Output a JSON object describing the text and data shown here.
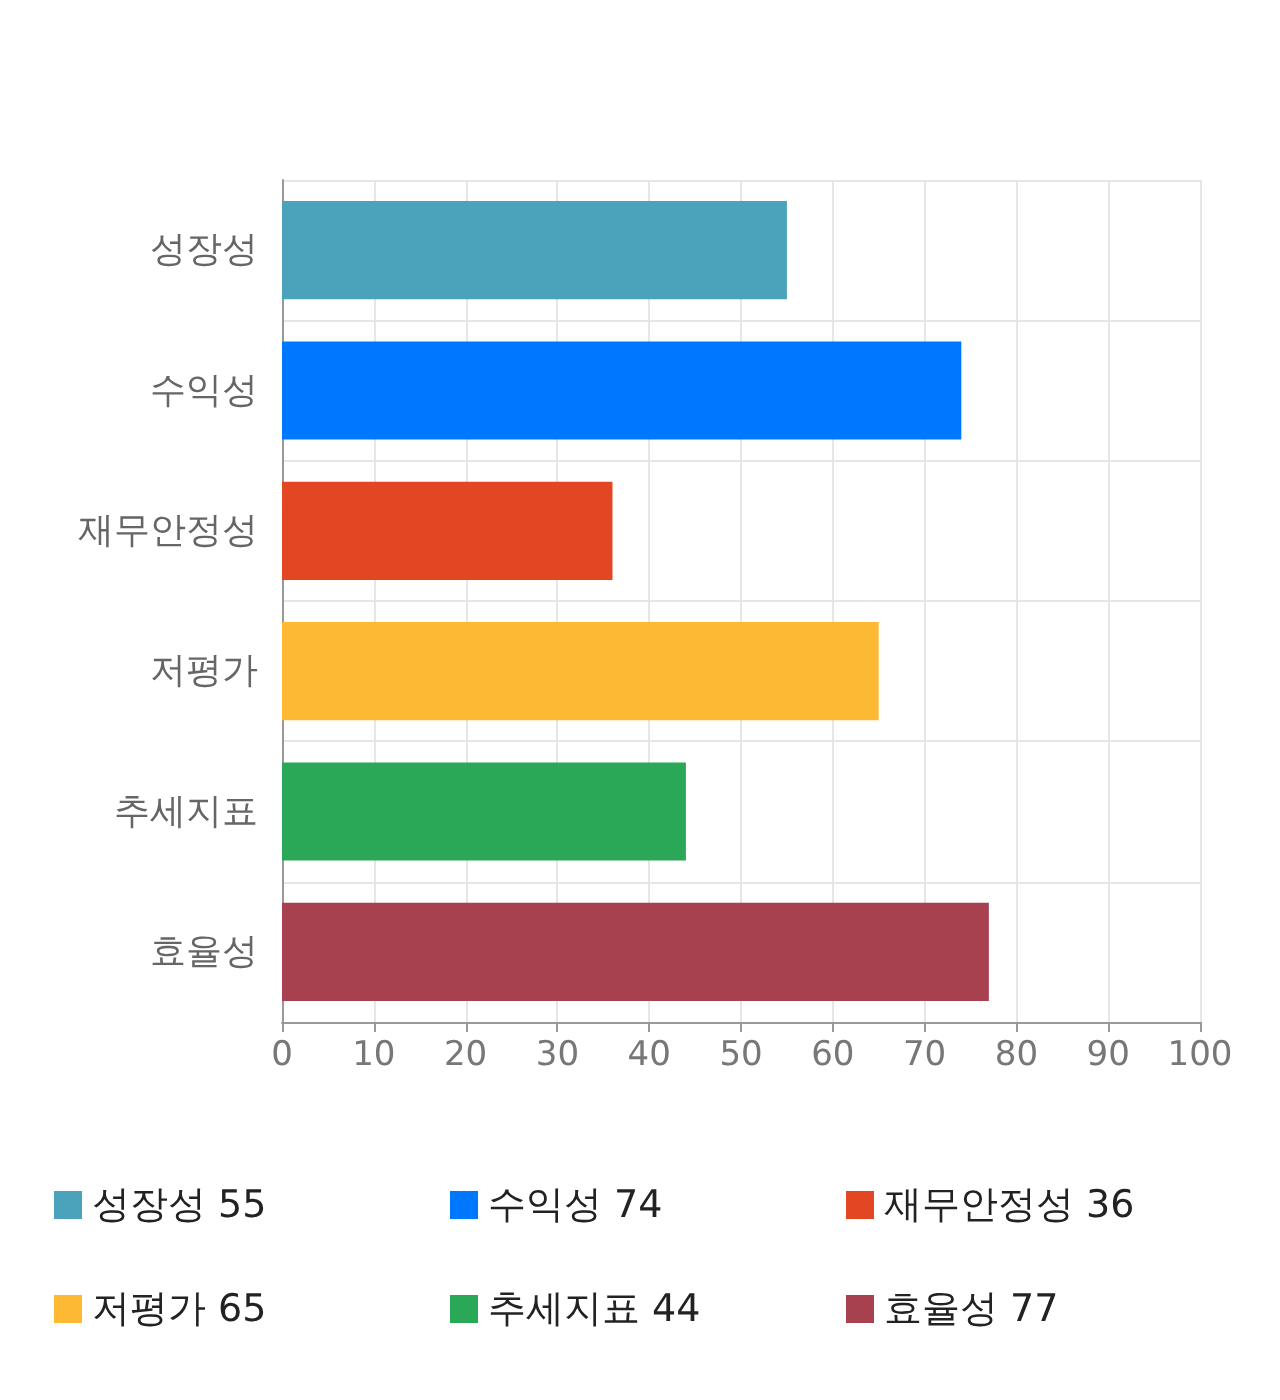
{
  "chart_data": {
    "type": "bar",
    "orientation": "horizontal",
    "stacked": true,
    "categories": [
      "성장성",
      "수익성",
      "재무안정성",
      "저평가",
      "추세지표",
      "효율성"
    ],
    "series": [
      {
        "name": "성장성 55",
        "color": "#4aa3ba",
        "values": [
          55,
          null,
          null,
          null,
          null,
          null
        ]
      },
      {
        "name": "수익성 74",
        "color": "#0077ff",
        "values": [
          null,
          74,
          null,
          null,
          null,
          null
        ]
      },
      {
        "name": "재무안정성 36",
        "color": "#e24622",
        "values": [
          null,
          null,
          36,
          null,
          null,
          null
        ]
      },
      {
        "name": "저평가 65",
        "color": "#fdb933",
        "values": [
          null,
          null,
          null,
          65,
          null,
          null
        ]
      },
      {
        "name": "추세지표 44",
        "color": "#2aa757",
        "values": [
          null,
          null,
          null,
          null,
          44,
          null
        ]
      },
      {
        "name": "효율성 77",
        "color": "#a7404f",
        "values": [
          null,
          null,
          null,
          null,
          null,
          77
        ]
      }
    ],
    "xlim": [
      0,
      100
    ],
    "xticks": [
      0,
      10,
      20,
      30,
      40,
      50,
      60,
      70,
      80,
      90,
      100
    ],
    "grid": true,
    "legend": "bottom"
  }
}
